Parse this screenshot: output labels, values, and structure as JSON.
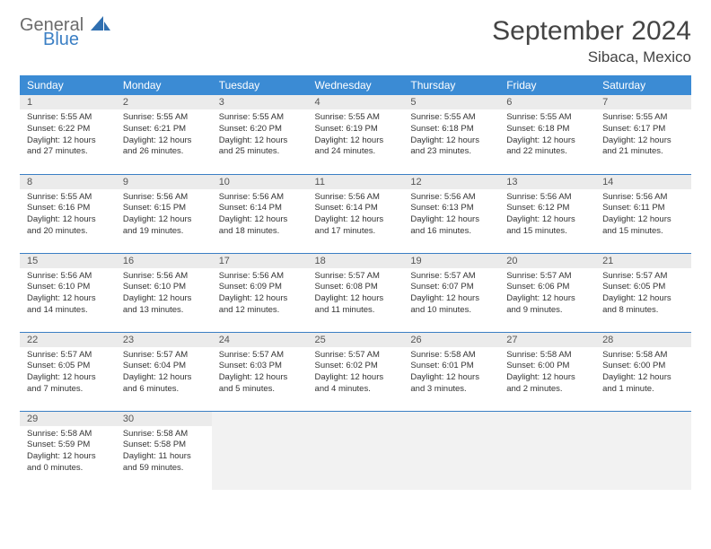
{
  "logo": {
    "general": "General",
    "blue": "Blue"
  },
  "title": "September 2024",
  "location": "Sibaca, Mexico",
  "colors": {
    "header_bg": "#3b8bd4",
    "header_text": "#ffffff",
    "daynum_bg": "#ebebeb",
    "border": "#3b7fc4",
    "logo_general": "#6b6b6b",
    "logo_blue": "#3b7fc4"
  },
  "weekdays": [
    "Sunday",
    "Monday",
    "Tuesday",
    "Wednesday",
    "Thursday",
    "Friday",
    "Saturday"
  ],
  "weeks": [
    [
      {
        "day": "1",
        "sunrise": "Sunrise: 5:55 AM",
        "sunset": "Sunset: 6:22 PM",
        "daylight1": "Daylight: 12 hours",
        "daylight2": "and 27 minutes."
      },
      {
        "day": "2",
        "sunrise": "Sunrise: 5:55 AM",
        "sunset": "Sunset: 6:21 PM",
        "daylight1": "Daylight: 12 hours",
        "daylight2": "and 26 minutes."
      },
      {
        "day": "3",
        "sunrise": "Sunrise: 5:55 AM",
        "sunset": "Sunset: 6:20 PM",
        "daylight1": "Daylight: 12 hours",
        "daylight2": "and 25 minutes."
      },
      {
        "day": "4",
        "sunrise": "Sunrise: 5:55 AM",
        "sunset": "Sunset: 6:19 PM",
        "daylight1": "Daylight: 12 hours",
        "daylight2": "and 24 minutes."
      },
      {
        "day": "5",
        "sunrise": "Sunrise: 5:55 AM",
        "sunset": "Sunset: 6:18 PM",
        "daylight1": "Daylight: 12 hours",
        "daylight2": "and 23 minutes."
      },
      {
        "day": "6",
        "sunrise": "Sunrise: 5:55 AM",
        "sunset": "Sunset: 6:18 PM",
        "daylight1": "Daylight: 12 hours",
        "daylight2": "and 22 minutes."
      },
      {
        "day": "7",
        "sunrise": "Sunrise: 5:55 AM",
        "sunset": "Sunset: 6:17 PM",
        "daylight1": "Daylight: 12 hours",
        "daylight2": "and 21 minutes."
      }
    ],
    [
      {
        "day": "8",
        "sunrise": "Sunrise: 5:55 AM",
        "sunset": "Sunset: 6:16 PM",
        "daylight1": "Daylight: 12 hours",
        "daylight2": "and 20 minutes."
      },
      {
        "day": "9",
        "sunrise": "Sunrise: 5:56 AM",
        "sunset": "Sunset: 6:15 PM",
        "daylight1": "Daylight: 12 hours",
        "daylight2": "and 19 minutes."
      },
      {
        "day": "10",
        "sunrise": "Sunrise: 5:56 AM",
        "sunset": "Sunset: 6:14 PM",
        "daylight1": "Daylight: 12 hours",
        "daylight2": "and 18 minutes."
      },
      {
        "day": "11",
        "sunrise": "Sunrise: 5:56 AM",
        "sunset": "Sunset: 6:14 PM",
        "daylight1": "Daylight: 12 hours",
        "daylight2": "and 17 minutes."
      },
      {
        "day": "12",
        "sunrise": "Sunrise: 5:56 AM",
        "sunset": "Sunset: 6:13 PM",
        "daylight1": "Daylight: 12 hours",
        "daylight2": "and 16 minutes."
      },
      {
        "day": "13",
        "sunrise": "Sunrise: 5:56 AM",
        "sunset": "Sunset: 6:12 PM",
        "daylight1": "Daylight: 12 hours",
        "daylight2": "and 15 minutes."
      },
      {
        "day": "14",
        "sunrise": "Sunrise: 5:56 AM",
        "sunset": "Sunset: 6:11 PM",
        "daylight1": "Daylight: 12 hours",
        "daylight2": "and 15 minutes."
      }
    ],
    [
      {
        "day": "15",
        "sunrise": "Sunrise: 5:56 AM",
        "sunset": "Sunset: 6:10 PM",
        "daylight1": "Daylight: 12 hours",
        "daylight2": "and 14 minutes."
      },
      {
        "day": "16",
        "sunrise": "Sunrise: 5:56 AM",
        "sunset": "Sunset: 6:10 PM",
        "daylight1": "Daylight: 12 hours",
        "daylight2": "and 13 minutes."
      },
      {
        "day": "17",
        "sunrise": "Sunrise: 5:56 AM",
        "sunset": "Sunset: 6:09 PM",
        "daylight1": "Daylight: 12 hours",
        "daylight2": "and 12 minutes."
      },
      {
        "day": "18",
        "sunrise": "Sunrise: 5:57 AM",
        "sunset": "Sunset: 6:08 PM",
        "daylight1": "Daylight: 12 hours",
        "daylight2": "and 11 minutes."
      },
      {
        "day": "19",
        "sunrise": "Sunrise: 5:57 AM",
        "sunset": "Sunset: 6:07 PM",
        "daylight1": "Daylight: 12 hours",
        "daylight2": "and 10 minutes."
      },
      {
        "day": "20",
        "sunrise": "Sunrise: 5:57 AM",
        "sunset": "Sunset: 6:06 PM",
        "daylight1": "Daylight: 12 hours",
        "daylight2": "and 9 minutes."
      },
      {
        "day": "21",
        "sunrise": "Sunrise: 5:57 AM",
        "sunset": "Sunset: 6:05 PM",
        "daylight1": "Daylight: 12 hours",
        "daylight2": "and 8 minutes."
      }
    ],
    [
      {
        "day": "22",
        "sunrise": "Sunrise: 5:57 AM",
        "sunset": "Sunset: 6:05 PM",
        "daylight1": "Daylight: 12 hours",
        "daylight2": "and 7 minutes."
      },
      {
        "day": "23",
        "sunrise": "Sunrise: 5:57 AM",
        "sunset": "Sunset: 6:04 PM",
        "daylight1": "Daylight: 12 hours",
        "daylight2": "and 6 minutes."
      },
      {
        "day": "24",
        "sunrise": "Sunrise: 5:57 AM",
        "sunset": "Sunset: 6:03 PM",
        "daylight1": "Daylight: 12 hours",
        "daylight2": "and 5 minutes."
      },
      {
        "day": "25",
        "sunrise": "Sunrise: 5:57 AM",
        "sunset": "Sunset: 6:02 PM",
        "daylight1": "Daylight: 12 hours",
        "daylight2": "and 4 minutes."
      },
      {
        "day": "26",
        "sunrise": "Sunrise: 5:58 AM",
        "sunset": "Sunset: 6:01 PM",
        "daylight1": "Daylight: 12 hours",
        "daylight2": "and 3 minutes."
      },
      {
        "day": "27",
        "sunrise": "Sunrise: 5:58 AM",
        "sunset": "Sunset: 6:00 PM",
        "daylight1": "Daylight: 12 hours",
        "daylight2": "and 2 minutes."
      },
      {
        "day": "28",
        "sunrise": "Sunrise: 5:58 AM",
        "sunset": "Sunset: 6:00 PM",
        "daylight1": "Daylight: 12 hours",
        "daylight2": "and 1 minute."
      }
    ],
    [
      {
        "day": "29",
        "sunrise": "Sunrise: 5:58 AM",
        "sunset": "Sunset: 5:59 PM",
        "daylight1": "Daylight: 12 hours",
        "daylight2": "and 0 minutes."
      },
      {
        "day": "30",
        "sunrise": "Sunrise: 5:58 AM",
        "sunset": "Sunset: 5:58 PM",
        "daylight1": "Daylight: 11 hours",
        "daylight2": "and 59 minutes."
      },
      {
        "empty": true
      },
      {
        "empty": true
      },
      {
        "empty": true
      },
      {
        "empty": true
      },
      {
        "empty": true
      }
    ]
  ]
}
